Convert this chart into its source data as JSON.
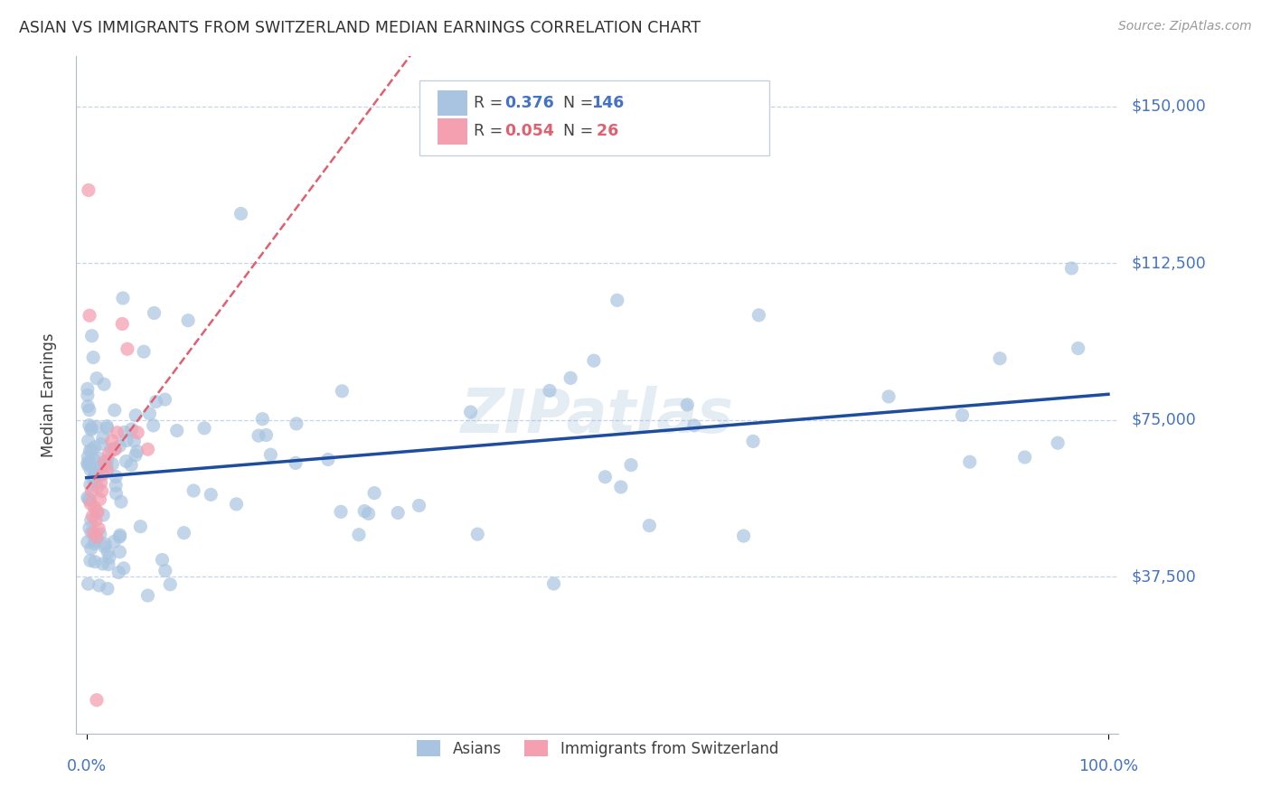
{
  "title": "ASIAN VS IMMIGRANTS FROM SWITZERLAND MEDIAN EARNINGS CORRELATION CHART",
  "source": "Source: ZipAtlas.com",
  "ylabel": "Median Earnings",
  "ytick_labels": [
    "$37,500",
    "$75,000",
    "$112,500",
    "$150,000"
  ],
  "ytick_values": [
    37500,
    75000,
    112500,
    150000
  ],
  "ymin": 0,
  "ymax": 162000,
  "xmin": 0.0,
  "xmax": 1.0,
  "asian_R": 0.376,
  "asian_N": 146,
  "swiss_R": 0.054,
  "swiss_N": 26,
  "legend_labels": [
    "Asians",
    "Immigrants from Switzerland"
  ],
  "asian_color": "#a8c4e0",
  "swiss_color": "#f4a0b0",
  "asian_line_color": "#1e4d9e",
  "swiss_line_color": "#e06070",
  "background_color": "#ffffff",
  "grid_color": "#c8d4e8",
  "title_color": "#303030",
  "axis_label_color": "#4472c4",
  "watermark": "ZIPatlas"
}
